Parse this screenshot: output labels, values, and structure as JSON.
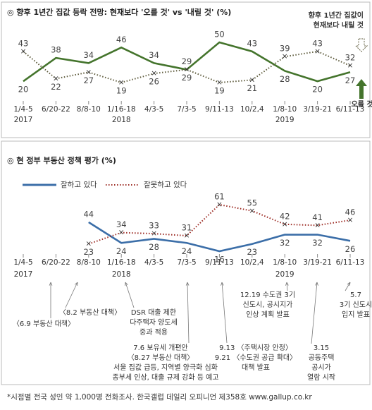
{
  "chart_data": [
    {
      "type": "line",
      "title": "◎ 향후 1년간 집값 등락 전망: 현재보다 '오를 것' vs '내릴 것' (%)",
      "categories": [
        "1/4-5",
        "6/20-22",
        "8/8-10",
        "1/16-18",
        "4/3-5",
        "7/3-5",
        "9/11-13",
        "10/2,4",
        "1/8-10",
        "3/19-21",
        "6/11-13"
      ],
      "year_labels": [
        "2017",
        null,
        null,
        "2018",
        null,
        null,
        null,
        null,
        "2019",
        null,
        null
      ],
      "series": [
        {
          "color": "#44742c",
          "dash": false,
          "values": [
            20,
            38,
            34,
            46,
            34,
            29,
            50,
            43,
            28,
            20,
            27
          ]
        },
        {
          "color": "#5e5b3c",
          "dash": true,
          "values": [
            43,
            22,
            27,
            19,
            26,
            29,
            19,
            21,
            39,
            43,
            32
          ]
        }
      ],
      "annotations": [
        [
          "향후 1년간  집값이",
          "현재보다 내릴 것"
        ],
        [
          "오를 것"
        ]
      ]
    },
    {
      "type": "line",
      "title": "◎ 현 정부 부동산 정책 평가 (%)",
      "categories": [
        "1/4-5",
        "6/20-22",
        "8/8-10",
        "1/16-18",
        "4/3-5",
        "7/3-5",
        "9/11-13",
        "10/2,4",
        "1/8-10",
        "3/19-21",
        "6/11-13"
      ],
      "year_labels": [
        "2017",
        null,
        null,
        "2018",
        null,
        null,
        null,
        null,
        "2019",
        null,
        null
      ],
      "legend": true,
      "series": [
        {
          "name": "잘하고 있다",
          "color": "#3b6ea8",
          "dash": false,
          "values": [
            null,
            null,
            44,
            24,
            28,
            24,
            16,
            23,
            32,
            32,
            26
          ]
        },
        {
          "name": "잘못하고 있다",
          "color": "#9c2b24",
          "dash": true,
          "values": [
            null,
            null,
            23,
            34,
            33,
            31,
            61,
            55,
            42,
            41,
            46
          ]
        }
      ],
      "annotations": [
        [
          "〈8.2 부동산 대책〉"
        ],
        [
          "〈6.9 부동산 대책〉"
        ],
        [
          "DSR 대출 제한",
          "다주택자 양도세",
          "중과 적용"
        ],
        [
          "7.6  보유세 개편안",
          "〈8.27 부동산 대책〉"
        ],
        [
          "서울 집값 급등, 지역별 양극화 심화",
          "종부세 인상, 대출 규제 강화 등 예고"
        ],
        [
          "12.19 수도권 3기",
          "신도시, 공시지가",
          "인상 계획 발표"
        ],
        [
          "9.13 〈주택시장 안정〉",
          "9.21 〈수도권 공급 확대〉",
          "대책 발표"
        ],
        [
          "3.15",
          "공동주택",
          "공시가",
          "열람 시작"
        ],
        [
          "5.7",
          "3기 신도시",
          "입지 발표"
        ]
      ]
    }
  ],
  "footnote": "*시점별 전국 성인 약 1,000명 전화조사. 한국갤럽 데일리 오피니언 제358호 www.gallup.co.kr"
}
